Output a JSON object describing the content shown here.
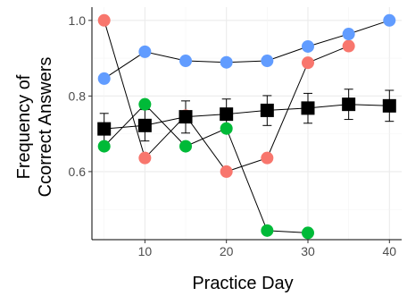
{
  "chart_data": {
    "type": "line",
    "xlabel": "Practice Day",
    "ylabel_lines": [
      "Frequency of",
      "Ccorrect  Answers"
    ],
    "xlim": [
      3.5,
      41.5
    ],
    "ylim": [
      0.42,
      1.035
    ],
    "x_ticks": [
      10,
      20,
      30,
      40
    ],
    "x_tick_labels": [
      "10",
      "20",
      "30",
      "40"
    ],
    "y_ticks": [
      0.6,
      0.8,
      1.0
    ],
    "y_tick_labels": [
      "0.6",
      "0.8",
      "1.0"
    ],
    "grid": true,
    "series": [
      {
        "color": "#f8766d",
        "marker": "circle",
        "x": [
          5,
          10,
          15,
          20,
          25,
          30,
          35
        ],
        "y": [
          1.0,
          0.636,
          0.748,
          0.6,
          0.636,
          0.888,
          0.932
        ]
      },
      {
        "color": "#00ba38",
        "marker": "circle",
        "x": [
          5,
          10,
          15,
          20,
          25,
          30
        ],
        "y": [
          0.667,
          0.778,
          0.667,
          0.714,
          0.444,
          0.438
        ]
      },
      {
        "color": "#619cff",
        "marker": "circle",
        "x": [
          5,
          10,
          15,
          20,
          25,
          30,
          35,
          40
        ],
        "y": [
          0.846,
          0.917,
          0.893,
          0.889,
          0.893,
          0.931,
          0.964,
          1.0
        ]
      },
      {
        "color": "#000000",
        "marker": "square",
        "x": [
          5,
          10,
          15,
          20,
          25,
          30,
          35,
          40
        ],
        "y": [
          0.713,
          0.722,
          0.745,
          0.752,
          0.762,
          0.768,
          0.778,
          0.774
        ],
        "err_low": [
          0.672,
          0.681,
          0.702,
          0.713,
          0.722,
          0.728,
          0.738,
          0.733
        ],
        "err_high": [
          0.754,
          0.764,
          0.787,
          0.792,
          0.801,
          0.807,
          0.818,
          0.815
        ]
      }
    ]
  }
}
